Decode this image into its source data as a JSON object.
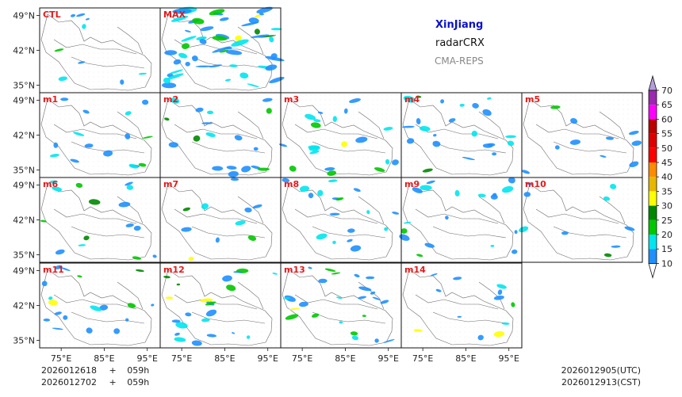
{
  "chart_data": {
    "type": "heatmap",
    "figure_title": {
      "region": "XinJiang",
      "product": "radarCRX",
      "source": "CMA-REPS"
    },
    "panels": [
      "CTL",
      "MAX",
      "m1",
      "m2",
      "m3",
      "m4",
      "m5",
      "m6",
      "m7",
      "m8",
      "m9",
      "m10",
      "m11",
      "m12",
      "m13",
      "m14"
    ],
    "panel_coverage": [
      0.06,
      0.55,
      0.12,
      0.16,
      0.18,
      0.2,
      0.07,
      0.12,
      0.07,
      0.14,
      0.16,
      0.05,
      0.15,
      0.2,
      0.22,
      0.09
    ],
    "x_axis": {
      "ticks": [
        75,
        85,
        95
      ],
      "tick_labels": [
        "75°E",
        "85°E",
        "95°E"
      ],
      "range": [
        70,
        98
      ]
    },
    "y_axis": {
      "ticks": [
        49,
        42,
        35
      ],
      "tick_labels": [
        "49°N",
        "42°N",
        "35°N"
      ],
      "range": [
        33.5,
        50.5
      ]
    },
    "colorbar": {
      "levels": [
        10,
        15,
        20,
        25,
        30,
        35,
        40,
        45,
        50,
        55,
        60,
        65,
        70
      ],
      "level_labels": [
        "10",
        "15",
        "20",
        "25",
        "30",
        "35",
        "40",
        "45",
        "50",
        "55",
        "60",
        "65",
        "70"
      ],
      "colors": [
        "#1e90ff",
        "#00e5ee",
        "#00c800",
        "#008800",
        "#ffff00",
        "#e6b800",
        "#ff8c00",
        "#ff0000",
        "#dd0000",
        "#bb0000",
        "#ff00ff",
        "#9c27b0",
        "#b39ddb"
      ],
      "extend": "both"
    },
    "init_times": [
      {
        "time": "2026012618",
        "plus": "+",
        "lead": "059h"
      },
      {
        "time": "2026012702",
        "plus": "+",
        "lead": "059h"
      }
    ],
    "valid_times": [
      "2026012905(UTC)",
      "2026012913(CST)"
    ]
  }
}
